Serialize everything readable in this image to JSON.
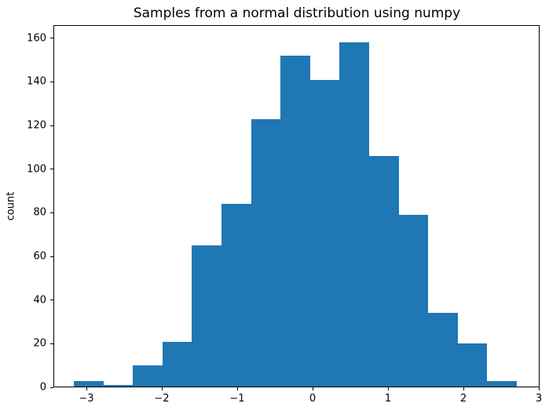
{
  "chart_data": {
    "type": "bar",
    "subtype": "histogram",
    "title": "Samples from a normal distribution using numpy",
    "xlabel": "",
    "ylabel": "count",
    "bar_color": "#1f77b4",
    "background_color": "#ffffff",
    "bin_edges": [
      -3.167,
      -2.775,
      -2.383,
      -1.992,
      -1.6,
      -1.208,
      -0.817,
      -0.425,
      -0.033,
      0.358,
      0.75,
      1.142,
      1.533,
      1.925,
      2.317,
      2.708
    ],
    "counts": [
      3,
      1,
      10,
      21,
      65,
      84,
      123,
      152,
      141,
      158,
      106,
      79,
      34,
      20,
      3
    ],
    "x_ticks": [
      -3,
      -2,
      -1,
      0,
      1,
      2,
      3
    ],
    "x_tick_labels": [
      "−3",
      "−2",
      "−1",
      "0",
      "1",
      "2",
      "3"
    ],
    "y_ticks": [
      0,
      20,
      40,
      60,
      80,
      100,
      120,
      140,
      160
    ],
    "y_tick_labels": [
      "0",
      "20",
      "40",
      "60",
      "80",
      "100",
      "120",
      "140",
      "160"
    ],
    "xlim": [
      -3.4375,
      3.01
    ],
    "ylim": [
      0,
      166
    ],
    "grid": false,
    "legend": null
  }
}
